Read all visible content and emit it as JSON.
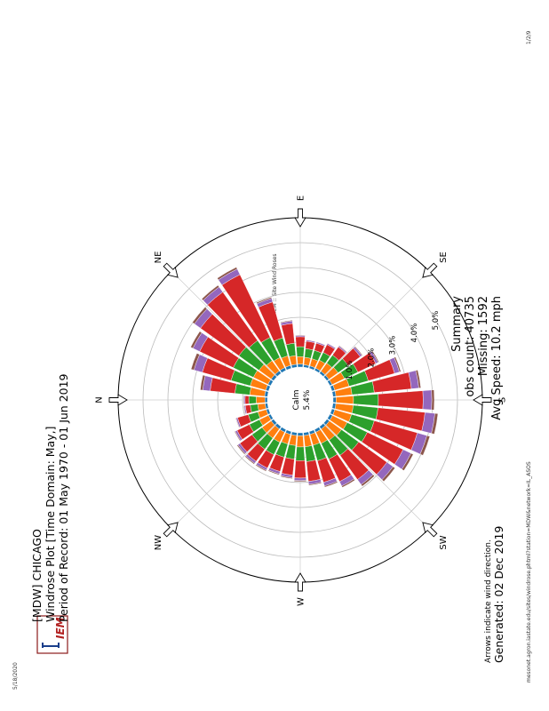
{
  "print_header": {
    "date": "5/18/2020",
    "page_title": "IEM :: Site Wind Roses",
    "page_number": "1/2/9"
  },
  "print_footer": {
    "url": "mesonet.agron.iastate.edu/sites/windrose.phtml?station=MDW&network=IL_ASOS"
  },
  "logo": {
    "text": "IEM"
  },
  "plot": {
    "title_line1": "[MDW] CHICAGO",
    "title_line2": "Windrose Plot [Time Domain: May,]",
    "title_line3": "Period of Record: 01 May 1970 - 01 Jun 2019",
    "arrows_note": "Arrows indicate wind direction.",
    "generated": "Generated: 02 Dec 2019"
  },
  "summary": {
    "heading": "Summary",
    "obs_count": "obs count: 40735",
    "missing": "Missing: 1592",
    "avg_speed": "Avg Speed: 10.2 mph"
  },
  "calm": {
    "label": "Calm",
    "value": "5.4%"
  },
  "colors": {
    "speed_bins": [
      "#1f77b4",
      "#ff7f0e",
      "#2ca02c",
      "#d62728",
      "#9467bd",
      "#8c564b"
    ],
    "background": "#ffffff"
  },
  "chart_data": {
    "type": "windrose",
    "compass_labels": [
      "N",
      "NE",
      "E",
      "SE",
      "S",
      "SW",
      "W",
      "NW"
    ],
    "radial_tick_labels": [
      "1.0%",
      "2.0%",
      "3.0%",
      "4.0%",
      "5.0%"
    ],
    "radial_ticks": [
      1.0,
      2.0,
      3.0,
      4.0,
      5.0
    ],
    "calm_percent": 5.4,
    "max_percent": 6.0,
    "directions_deg": [
      0,
      10,
      20,
      30,
      40,
      50,
      60,
      70,
      80,
      90,
      100,
      110,
      120,
      130,
      140,
      150,
      160,
      170,
      180,
      190,
      200,
      210,
      220,
      230,
      240,
      250,
      260,
      270,
      280,
      290,
      300,
      310,
      320,
      330,
      340,
      350
    ],
    "series": [
      {
        "values": [
          0.1,
          0.12,
          0.12,
          0.12,
          0.12,
          0.12,
          0.12,
          0.12,
          0.12,
          0.12,
          0.1,
          0.1,
          0.1,
          0.1,
          0.1,
          0.1,
          0.12,
          0.12,
          0.12,
          0.12,
          0.12,
          0.12,
          0.12,
          0.12,
          0.12,
          0.12,
          0.12,
          0.12,
          0.12,
          0.12,
          0.12,
          0.12,
          0.12,
          0.1,
          0.1,
          0.1
        ]
      },
      {
        "values": [
          0.35,
          0.6,
          0.65,
          0.65,
          0.6,
          0.5,
          0.45,
          0.4,
          0.35,
          0.3,
          0.3,
          0.3,
          0.35,
          0.4,
          0.45,
          0.55,
          0.6,
          0.65,
          0.7,
          0.7,
          0.7,
          0.65,
          0.6,
          0.55,
          0.5,
          0.45,
          0.45,
          0.45,
          0.4,
          0.4,
          0.45,
          0.45,
          0.45,
          0.4,
          0.35,
          0.3
        ]
      },
      {
        "values": [
          0.3,
          0.6,
          0.8,
          0.9,
          1.0,
          1.0,
          0.9,
          0.75,
          0.5,
          0.4,
          0.35,
          0.35,
          0.35,
          0.4,
          0.5,
          0.6,
          0.8,
          0.9,
          1.0,
          1.0,
          0.95,
          0.9,
          0.85,
          0.75,
          0.7,
          0.65,
          0.6,
          0.55,
          0.55,
          0.55,
          0.55,
          0.55,
          0.5,
          0.45,
          0.4,
          0.3
        ]
      },
      {
        "values": [
          0.15,
          1.0,
          1.2,
          1.5,
          1.9,
          2.4,
          2.8,
          1.5,
          0.8,
          0.4,
          0.3,
          0.3,
          0.35,
          0.4,
          0.6,
          0.8,
          1.1,
          1.5,
          1.8,
          1.9,
          1.8,
          1.6,
          1.4,
          1.2,
          1.0,
          0.9,
          0.8,
          0.7,
          0.65,
          0.6,
          0.6,
          0.6,
          0.6,
          0.55,
          0.45,
          0.2
        ]
      },
      {
        "values": [
          0.05,
          0.3,
          0.35,
          0.3,
          0.3,
          0.25,
          0.25,
          0.15,
          0.1,
          0.05,
          0.05,
          0.05,
          0.05,
          0.05,
          0.08,
          0.1,
          0.2,
          0.3,
          0.35,
          0.4,
          0.4,
          0.35,
          0.3,
          0.25,
          0.2,
          0.15,
          0.12,
          0.1,
          0.1,
          0.1,
          0.1,
          0.1,
          0.1,
          0.08,
          0.06,
          0.05
        ]
      },
      {
        "values": [
          0.02,
          0.1,
          0.12,
          0.1,
          0.1,
          0.08,
          0.08,
          0.05,
          0.03,
          0.02,
          0.01,
          0.01,
          0.01,
          0.02,
          0.03,
          0.04,
          0.06,
          0.08,
          0.1,
          0.12,
          0.12,
          0.1,
          0.1,
          0.08,
          0.06,
          0.05,
          0.04,
          0.04,
          0.04,
          0.04,
          0.04,
          0.04,
          0.04,
          0.03,
          0.02,
          0.02
        ]
      }
    ]
  }
}
